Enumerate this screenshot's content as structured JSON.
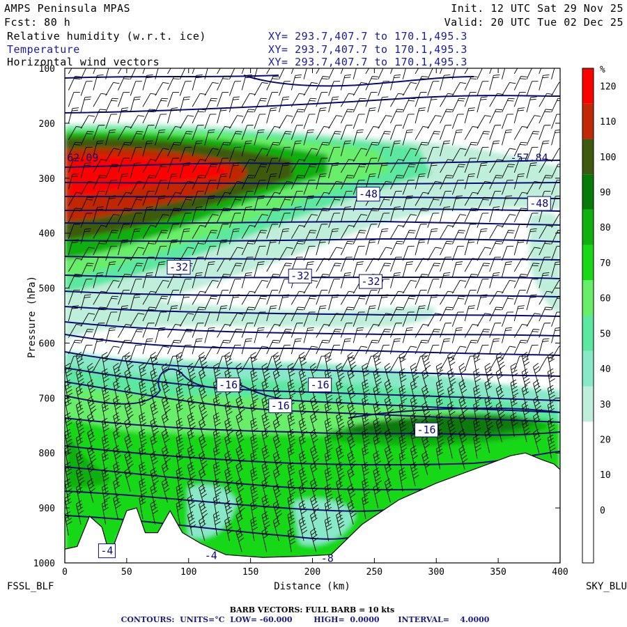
{
  "header": {
    "model": "AMPS Peninsula MPAS",
    "init": "Init. 12 UTC Sat 29 Nov 25",
    "fcst": "Fcst:   80 h",
    "valid": "Valid: 20 UTC Tue 02 Dec 25",
    "field1": "Relative humidity (w.r.t. ice)",
    "field2": "Temperature",
    "field3": "Horizontal wind vectors",
    "xy1": "XY= 293.7,407.7 to 170.1,495.3",
    "xy2": "XY= 293.7,407.7 to 170.1,495.3",
    "xy3": "XY= 293.7,407.7 to 170.1,495.3"
  },
  "footer": {
    "left_station": "FSSL_BLF",
    "right_station": "SKY_BLU",
    "barb_note": "BARB VECTORS:  FULL BARB = 10 kts",
    "contour_note": "CONTOURS:  UNITS=°C  LOW= -60.000        HIGH=  0.0000       INTERVAL=    4.0000"
  },
  "colors": {
    "contour": "#0a0a78",
    "barb": "#000000",
    "series2_text": "#1a1aa0",
    "rh_scale": [
      "#ffffff",
      "#ffffff",
      "#ffffff",
      "#ffffff",
      "#bfeeda",
      "#88e8c8",
      "#5ce8a0",
      "#68ee68",
      "#18d818",
      "#10b010",
      "#087a08",
      "#3e5a10",
      "#c02806",
      "#ff0000"
    ]
  },
  "chart_data": {
    "type": "heatmap",
    "title": "Relative humidity (w.r.t. ice)",
    "xlabel": "Distance (km)",
    "ylabel": "Pressure (hPa)",
    "xlim": [
      0,
      400
    ],
    "ylim": [
      1000,
      100
    ],
    "x_ticks": [
      "0",
      "50",
      "100",
      "150",
      "200",
      "250",
      "300",
      "350",
      "400"
    ],
    "y_ticks": [
      "100",
      "200",
      "300",
      "400",
      "500",
      "600",
      "700",
      "800",
      "900",
      "1000"
    ],
    "colorbar": {
      "unit": "%",
      "levels": [
        -10,
        0,
        10,
        20,
        30,
        40,
        50,
        60,
        70,
        80,
        90,
        100,
        110,
        120,
        130
      ],
      "labels": [
        "0",
        "10",
        "20",
        "30",
        "40",
        "50",
        "60",
        "70",
        "80",
        "90",
        "100",
        "110",
        "120"
      ]
    },
    "temperature_contours": {
      "units": "°C",
      "interval": 4,
      "labels": [
        {
          "x": 12,
          "p": 263,
          "text": "-62.09",
          "boxed": false
        },
        {
          "x": 375,
          "p": 263,
          "text": "-57.84",
          "boxed": false
        },
        {
          "x": 245,
          "p": 329,
          "text": "-48",
          "boxed": true
        },
        {
          "x": 383,
          "p": 346,
          "text": "-48",
          "boxed": true
        },
        {
          "x": 92,
          "p": 462,
          "text": "-32",
          "boxed": true
        },
        {
          "x": 190,
          "p": 478,
          "text": "-32",
          "boxed": true
        },
        {
          "x": 247,
          "p": 488,
          "text": "-32",
          "boxed": true
        },
        {
          "x": 132,
          "p": 676,
          "text": "-16",
          "boxed": true
        },
        {
          "x": 206,
          "p": 676,
          "text": "-16",
          "boxed": true
        },
        {
          "x": 174,
          "p": 714,
          "text": "-16",
          "boxed": true
        },
        {
          "x": 292,
          "p": 758,
          "text": "-16",
          "boxed": true
        },
        {
          "x": 34,
          "p": 978,
          "text": "-4",
          "boxed": true
        },
        {
          "x": 118,
          "p": 987,
          "text": "-4",
          "boxed": false
        },
        {
          "x": 212,
          "p": 992,
          "text": "-8",
          "boxed": false
        }
      ]
    },
    "terrain_surface": [
      {
        "x": 0,
        "p": 975
      },
      {
        "x": 10,
        "p": 970
      },
      {
        "x": 20,
        "p": 915
      },
      {
        "x": 30,
        "p": 935
      },
      {
        "x": 35,
        "p": 975
      },
      {
        "x": 40,
        "p": 965
      },
      {
        "x": 50,
        "p": 905
      },
      {
        "x": 58,
        "p": 900
      },
      {
        "x": 65,
        "p": 945
      },
      {
        "x": 75,
        "p": 945
      },
      {
        "x": 85,
        "p": 905
      },
      {
        "x": 95,
        "p": 945
      },
      {
        "x": 110,
        "p": 965
      },
      {
        "x": 130,
        "p": 985
      },
      {
        "x": 160,
        "p": 990
      },
      {
        "x": 190,
        "p": 988
      },
      {
        "x": 215,
        "p": 985
      },
      {
        "x": 240,
        "p": 930
      },
      {
        "x": 270,
        "p": 885
      },
      {
        "x": 300,
        "p": 855
      },
      {
        "x": 330,
        "p": 830
      },
      {
        "x": 360,
        "p": 805
      },
      {
        "x": 372,
        "p": 800
      },
      {
        "x": 385,
        "p": 812
      },
      {
        "x": 395,
        "p": 820
      },
      {
        "x": 400,
        "p": 830
      }
    ]
  }
}
